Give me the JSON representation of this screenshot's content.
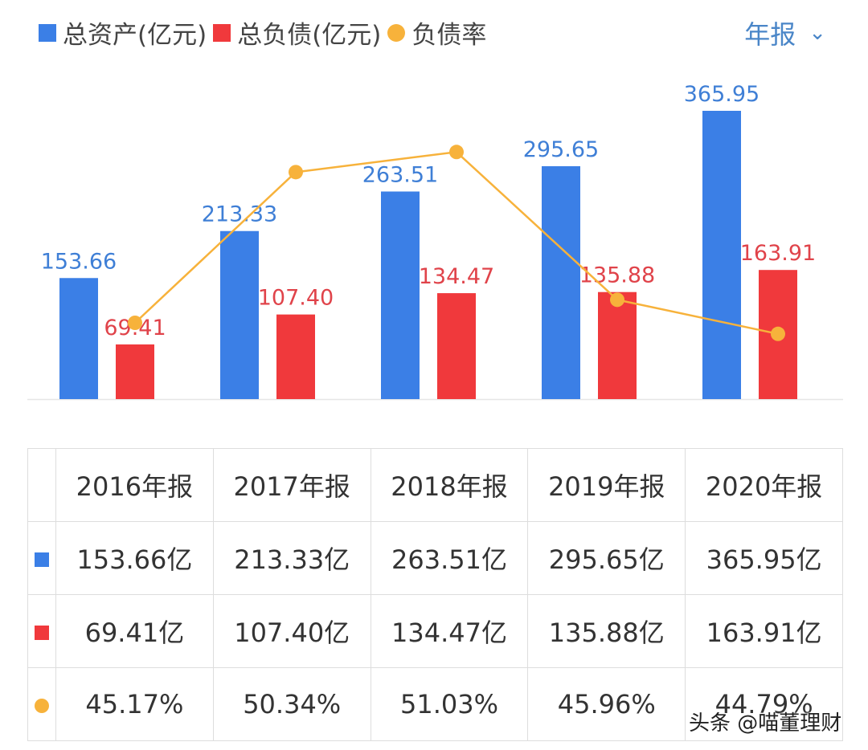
{
  "legend": {
    "assets": "总资产(亿元)",
    "liabilities": "总负债(亿元)",
    "ratio": "负债率"
  },
  "period_selector": {
    "label": "年报",
    "icon": "chevron-down-icon"
  },
  "colors": {
    "assets": "#3b7fe6",
    "liabilities": "#f0393c",
    "ratio": "#f7b23b",
    "selector": "#4a86c8"
  },
  "chart_data": {
    "type": "bar",
    "categories": [
      "2016年报",
      "2017年报",
      "2018年报",
      "2019年报",
      "2020年报"
    ],
    "series": [
      {
        "name": "总资产(亿元)",
        "type": "bar",
        "values": [
          153.66,
          213.33,
          263.51,
          295.65,
          365.95
        ],
        "labels": [
          "153.66",
          "213.33",
          "263.51",
          "295.65",
          "365.95"
        ]
      },
      {
        "name": "总负债(亿元)",
        "type": "bar",
        "values": [
          69.41,
          107.4,
          134.47,
          135.88,
          163.91
        ],
        "labels": [
          "69.41",
          "107.40",
          "134.47",
          "135.88",
          "163.91"
        ]
      },
      {
        "name": "负债率",
        "type": "line",
        "values": [
          45.17,
          50.34,
          51.03,
          45.96,
          44.79
        ],
        "unit": "%"
      }
    ],
    "grid": false,
    "legend_position": "top-left"
  },
  "table": {
    "headers": [
      "2016年报",
      "2017年报",
      "2018年报",
      "2019年报",
      "2020年报"
    ],
    "rows": [
      {
        "key": "assets",
        "cells": [
          "153.66亿",
          "213.33亿",
          "263.51亿",
          "295.65亿",
          "365.95亿"
        ]
      },
      {
        "key": "liabilities",
        "cells": [
          "69.41亿",
          "107.40亿",
          "134.47亿",
          "135.88亿",
          "163.91亿"
        ]
      },
      {
        "key": "ratio",
        "cells": [
          "45.17%",
          "50.34%",
          "51.03%",
          "45.96%",
          "44.79%"
        ]
      }
    ]
  },
  "watermark": "头条 @喵董理财"
}
